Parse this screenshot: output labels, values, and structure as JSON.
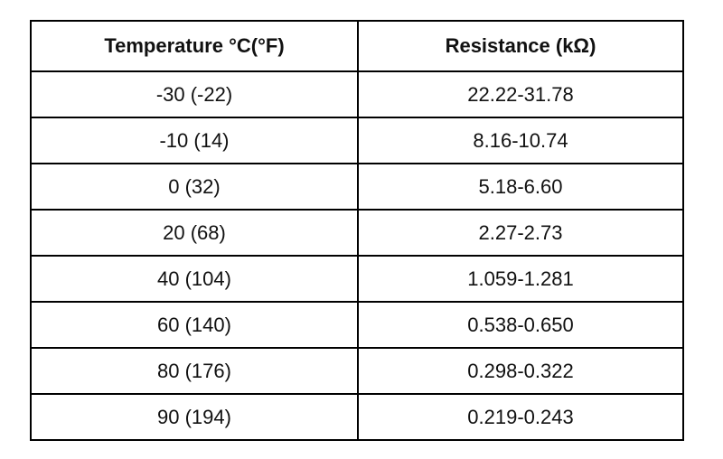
{
  "table": {
    "headers": [
      "Temperature °C(°F)",
      "Resistance (kΩ)"
    ],
    "rows": [
      [
        "-30 (-22)",
        "22.22-31.78"
      ],
      [
        "-10 (14)",
        "8.16-10.74"
      ],
      [
        "0 (32)",
        "5.18-6.60"
      ],
      [
        "20 (68)",
        "2.27-2.73"
      ],
      [
        "40 (104)",
        "1.059-1.281"
      ],
      [
        "60 (140)",
        "0.538-0.650"
      ],
      [
        "80 (176)",
        "0.298-0.322"
      ],
      [
        "90 (194)",
        "0.219-0.243"
      ]
    ]
  }
}
